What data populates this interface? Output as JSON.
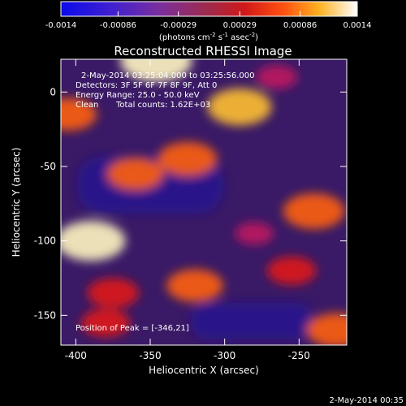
{
  "colorbar": {
    "tick_labels": [
      "-0.0014",
      "-0.00086",
      "-0.00029",
      "0.00029",
      "0.00086",
      "0.0014"
    ],
    "tick_values": [
      -0.0014,
      -0.00086,
      -0.00029,
      0.00029,
      0.00086,
      0.0014
    ],
    "range": [
      -0.0014,
      0.0014
    ],
    "units_parts": [
      "(photons cm",
      "-2",
      " s",
      "-1",
      " asec",
      "-2",
      ")"
    ],
    "colormap": "blue-purple-red-orange-yellow-white"
  },
  "chart_data": {
    "type": "heatmap",
    "title": "Reconstructed RHESSI Image",
    "xlabel": "Heliocentric X (arcsec)",
    "ylabel": "Heliocentric Y (arcsec)",
    "xlim": [
      -410,
      -218
    ],
    "ylim": [
      -170,
      22
    ],
    "xticks": [
      -400,
      -350,
      -300,
      -250
    ],
    "xtick_labels": [
      "-400",
      "-350",
      "-300",
      "-250"
    ],
    "yticks": [
      0,
      -50,
      -100,
      -150
    ],
    "ytick_labels": [
      "0",
      "-50",
      "-100",
      "-150"
    ],
    "peak_position": [
      -346,
      21
    ],
    "blobs": [
      {
        "x": -346,
        "y": 21,
        "v": 1.0
      },
      {
        "x": -390,
        "y": -100,
        "v": 0.95
      },
      {
        "x": -290,
        "y": -10,
        "v": 0.85
      },
      {
        "x": -325,
        "y": -45,
        "v": 0.75
      },
      {
        "x": -240,
        "y": -80,
        "v": 0.8
      },
      {
        "x": -360,
        "y": -55,
        "v": 0.7
      },
      {
        "x": -405,
        "y": -15,
        "v": 0.7
      },
      {
        "x": -320,
        "y": -130,
        "v": 0.7
      },
      {
        "x": -375,
        "y": -135,
        "v": 0.6
      },
      {
        "x": -225,
        "y": -160,
        "v": 0.75
      },
      {
        "x": -255,
        "y": -120,
        "v": 0.55
      },
      {
        "x": -380,
        "y": -155,
        "v": 0.55
      },
      {
        "x": -265,
        "y": 10,
        "v": 0.4
      },
      {
        "x": -280,
        "y": -95,
        "v": 0.35
      }
    ],
    "annotations": {
      "time_range": "2-May-2014 03:25:04.000 to 03:25:56.000",
      "detectors": "Detectors: 3F 5F 6F 7F 8F 9F, Att 0",
      "energy_range": "Energy Range: 25.0 - 50.0 keV",
      "method": "Clean",
      "total_counts": "Total counts: 1.62E+03",
      "peak": "Position of Peak = [-346,21]"
    }
  },
  "footer": {
    "timestamp": "2-May-2014 00:35"
  }
}
